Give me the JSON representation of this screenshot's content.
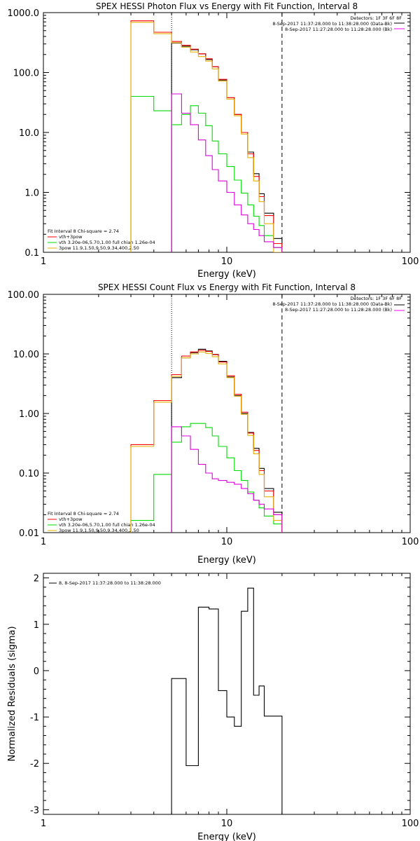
{
  "chart_data": [
    {
      "type": "line",
      "title": "SPEX HESSI Photon Flux vs Energy with Fit Function, Interval 8",
      "xlabel": "Energy (keV)",
      "ylabel": "",
      "xscale": "log",
      "yscale": "log",
      "xlim": [
        1,
        100
      ],
      "ylim": [
        0.1,
        1000
      ],
      "grid": false,
      "x_ticks": [
        {
          "v": 1,
          "label": "1"
        },
        {
          "v": 10,
          "label": "10"
        },
        {
          "v": 100,
          "label": "100"
        }
      ],
      "y_ticks": [
        {
          "v": 0.1,
          "label": "0.1"
        },
        {
          "v": 1,
          "label": "1.0"
        },
        {
          "v": 10,
          "label": "10.0"
        },
        {
          "v": 100,
          "label": "100.0"
        },
        {
          "v": 1000,
          "label": "1000.0"
        }
      ],
      "vlines": [
        {
          "x": 5,
          "style": "dotted"
        },
        {
          "x": 20,
          "style": "dashed"
        }
      ],
      "legend_topright": {
        "header": "Detectors: 1F 3F 6F 8F",
        "items": [
          {
            "text": "8-Sep-2017 11:37:28.000 to 11:38:28.000 (Data-Bk)",
            "color": "#000000"
          },
          {
            "text": "8-Sep-2017 11:27:28.000 to 11:28:28.000 (Bk)",
            "color": "#ff00ff"
          }
        ]
      },
      "legend_bottomleft": {
        "header": "Fit Interval 8   Chi-square = 2.74",
        "items": [
          {
            "text": "vth+3pow",
            "color": "#ff0000"
          },
          {
            "text": "vth 3.20e-06,5.70,1.00  full chian 1.26e-04",
            "color": "#00dd00"
          },
          {
            "text": "3pow 11.9,1.50,9.50,9.34,400,2.50",
            "color": "#e6b000"
          }
        ]
      },
      "edges": [
        3,
        4,
        5,
        5.67,
        6.33,
        7,
        7.67,
        8.33,
        9,
        10,
        11,
        12,
        13,
        14,
        15,
        16,
        18,
        20
      ],
      "series": [
        {
          "key": "data",
          "color": "#000000",
          "values": [
            null,
            null,
            310,
            275,
            240,
            205,
            165,
            125,
            75,
            38,
            20,
            10,
            4.7,
            2.05,
            0.95,
            0.45,
            0.17
          ]
        },
        {
          "key": "total",
          "color": "#ff0000",
          "values": [
            730,
            470,
            330,
            285,
            245,
            205,
            170,
            125,
            77,
            38,
            20,
            10,
            4.4,
            1.85,
            0.85,
            0.41,
            0.14
          ]
        },
        {
          "key": "thermal",
          "color": "#00dd00",
          "values": [
            40,
            23,
            13.5,
            20,
            28,
            21,
            13,
            7.2,
            4.4,
            2.7,
            1.6,
            0.97,
            0.62,
            0.4,
            0.28,
            0.19,
            0.12
          ]
        },
        {
          "key": "powerlaw",
          "color": "#e6b000",
          "values": [
            690,
            445,
            315,
            265,
            220,
            185,
            155,
            115,
            72,
            36,
            19,
            9.4,
            3.8,
            1.55,
            0.7,
            0.3,
            0.1
          ]
        },
        {
          "key": "background",
          "color": "#dd00dd",
          "values": [
            null,
            null,
            44,
            21,
            13.5,
            7.5,
            4.1,
            2.4,
            1.55,
            1.0,
            0.62,
            0.42,
            0.3,
            0.24,
            0.19,
            0.15,
            0.12
          ]
        }
      ]
    },
    {
      "type": "line",
      "title": "SPEX HESSI Count Flux vs Energy with Fit Function, Interval 8",
      "xlabel": "Energy (keV)",
      "ylabel": "",
      "xscale": "log",
      "yscale": "log",
      "xlim": [
        1,
        100
      ],
      "ylim": [
        0.01,
        100
      ],
      "grid": false,
      "x_ticks": [
        {
          "v": 1,
          "label": "1"
        },
        {
          "v": 10,
          "label": "10"
        },
        {
          "v": 100,
          "label": "100"
        }
      ],
      "y_ticks": [
        {
          "v": 0.01,
          "label": "0.01"
        },
        {
          "v": 0.1,
          "label": "0.10"
        },
        {
          "v": 1,
          "label": "1.00"
        },
        {
          "v": 10,
          "label": "10.00"
        },
        {
          "v": 100,
          "label": "100.00"
        }
      ],
      "vlines": [
        {
          "x": 5,
          "style": "dotted"
        },
        {
          "x": 20,
          "style": "dashed"
        }
      ],
      "legend_topright": {
        "header": "Detectors: 1F 3F 6F 8F",
        "items": [
          {
            "text": "8-Sep-2017 11:37:28.000 to 11:38:28.000 (Data-Bk)",
            "color": "#000000"
          },
          {
            "text": "8-Sep-2017 11:27:28.000 to 11:28:28.000 (Bk)",
            "color": "#ff00ff"
          }
        ]
      },
      "legend_bottomleft": {
        "header": "Fit Interval 8   Chi-square = 2.74",
        "items": [
          {
            "text": "vth+3pow",
            "color": "#ff0000"
          },
          {
            "text": "vth 3.20e-06,5.70,1.00  full chian 1.26e-04",
            "color": "#00dd00"
          },
          {
            "text": "3pow 11.9,1.50,9.50,9.34,400,2.50",
            "color": "#e6b000"
          }
        ]
      },
      "edges": [
        3,
        4,
        5,
        5.67,
        6.33,
        7,
        7.67,
        8.33,
        9,
        10,
        11,
        12,
        13,
        14,
        15,
        16,
        18,
        20
      ],
      "series": [
        {
          "key": "data",
          "color": "#000000",
          "values": [
            null,
            null,
            4.0,
            8.6,
            10.5,
            12.0,
            11.2,
            9.8,
            7.5,
            4.1,
            2.0,
            1.0,
            0.48,
            0.26,
            0.12,
            0.055,
            0.022
          ]
        },
        {
          "key": "total",
          "color": "#ff0000",
          "values": [
            0.3,
            1.65,
            4.5,
            9.2,
            10.8,
            11.5,
            11.0,
            9.7,
            7.3,
            4.3,
            2.1,
            1.05,
            0.47,
            0.24,
            0.11,
            0.05,
            0.02
          ]
        },
        {
          "key": "thermal",
          "color": "#00dd00",
          "values": [
            0.016,
            0.095,
            0.33,
            0.6,
            0.68,
            0.68,
            0.58,
            0.42,
            0.28,
            0.18,
            0.11,
            0.075,
            0.048,
            0.035,
            0.026,
            0.019,
            0.014
          ]
        },
        {
          "key": "powerlaw",
          "color": "#e6b000",
          "values": [
            0.28,
            1.55,
            4.2,
            8.6,
            10.0,
            10.8,
            10.2,
            9.0,
            6.8,
            4.0,
            1.95,
            0.97,
            0.43,
            0.21,
            0.095,
            0.04,
            0.016
          ]
        },
        {
          "key": "background",
          "color": "#dd00dd",
          "values": [
            null,
            null,
            0.6,
            0.42,
            0.25,
            0.14,
            0.1,
            0.08,
            0.075,
            0.07,
            0.065,
            0.055,
            0.045,
            0.035,
            0.03,
            0.025,
            0.02
          ]
        }
      ]
    },
    {
      "type": "line",
      "title": "",
      "xlabel": "Energy (keV)",
      "ylabel": "Normalized Residuals (sigma)",
      "xscale": "log",
      "yscale": "linear",
      "xlim": [
        1,
        100
      ],
      "ylim": [
        -3.1,
        2.1
      ],
      "grid": false,
      "x_ticks": [
        {
          "v": 1,
          "label": "1"
        },
        {
          "v": 10,
          "label": "10"
        },
        {
          "v": 100,
          "label": "100"
        }
      ],
      "y_ticks": [
        {
          "v": -3,
          "label": "-3"
        },
        {
          "v": -2,
          "label": "-2"
        },
        {
          "v": -1,
          "label": "-1"
        },
        {
          "v": 0,
          "label": "0"
        },
        {
          "v": 1,
          "label": "1"
        },
        {
          "v": 2,
          "label": "2"
        }
      ],
      "legend_topleft": {
        "items": [
          {
            "text": "8,  8-Sep-2017 11:37:28.000 to 11:38:28.000",
            "color": "#000000"
          }
        ]
      },
      "edges": [
        5,
        6,
        7,
        8,
        9,
        10,
        11,
        12,
        13,
        14,
        15,
        16,
        18,
        20
      ],
      "series": [
        {
          "key": "residuals",
          "color": "#000000",
          "values": [
            -0.17,
            -2.05,
            1.37,
            1.33,
            -0.43,
            -1.0,
            -1.2,
            1.28,
            1.78,
            -0.53,
            -0.33,
            -0.98,
            -0.98
          ]
        }
      ]
    }
  ]
}
